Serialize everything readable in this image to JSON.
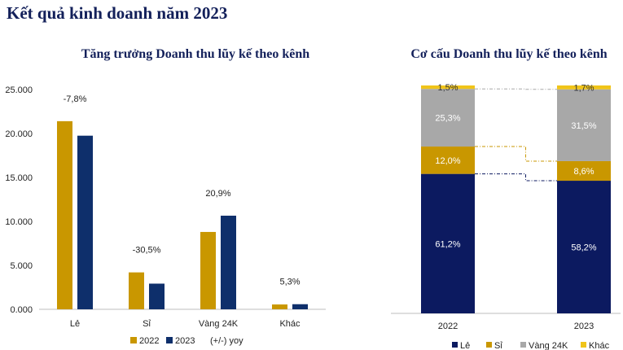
{
  "page": {
    "title": "Kết quả kinh doanh năm 2023"
  },
  "colors": {
    "y2022": "#c99700",
    "y2023": "#0e2f6b",
    "le": "#0c1a60",
    "si": "#c99700",
    "vang": "#a8a8a8",
    "khac": "#f0c419",
    "axis": "#bdbdbd",
    "text": "#222222"
  },
  "chart_data": [
    {
      "type": "bar",
      "title": "Tăng trưởng Doanh thu lũy kế theo kênh",
      "categories": [
        "Lẻ",
        "Sỉ",
        "Vàng 24K",
        "Khác"
      ],
      "series": [
        {
          "name": "2022",
          "values": [
            21400,
            4200,
            8800,
            550
          ]
        },
        {
          "name": "2023",
          "values": [
            19750,
            2920,
            10650,
            580
          ]
        }
      ],
      "yoy_labels": [
        "-7,8%",
        "-30,5%",
        "20,9%",
        "5,3%"
      ],
      "yticks": [
        0,
        5000,
        10000,
        15000,
        20000,
        25000
      ],
      "ytick_labels": [
        "0.000",
        "5.000",
        "10.000",
        "15.000",
        "20.000",
        "25.000"
      ],
      "ylim": [
        0,
        25000
      ],
      "legend": {
        "items": [
          "2022",
          "2023"
        ],
        "note": "(+/-) yoy",
        "position": "bottom"
      }
    },
    {
      "type": "bar",
      "stacked": true,
      "title": "Cơ cấu Doanh thu lũy kế theo kênh",
      "categories": [
        "2022",
        "2023"
      ],
      "series": [
        {
          "name": "Lẻ",
          "values": [
            61.2,
            58.2
          ],
          "labels": [
            "61,2%",
            "58,2%"
          ]
        },
        {
          "name": "Sỉ",
          "values": [
            12.0,
            8.6
          ],
          "labels": [
            "12,0%",
            "8,6%"
          ]
        },
        {
          "name": "Vàng 24K",
          "values": [
            25.3,
            31.5
          ],
          "labels": [
            "25,3%",
            "31,5%"
          ]
        },
        {
          "name": "Khác",
          "values": [
            1.5,
            1.7
          ],
          "labels": [
            "1,5%",
            "1,7%"
          ]
        }
      ],
      "ylim": [
        0,
        100
      ],
      "legend": {
        "position": "bottom"
      }
    }
  ]
}
